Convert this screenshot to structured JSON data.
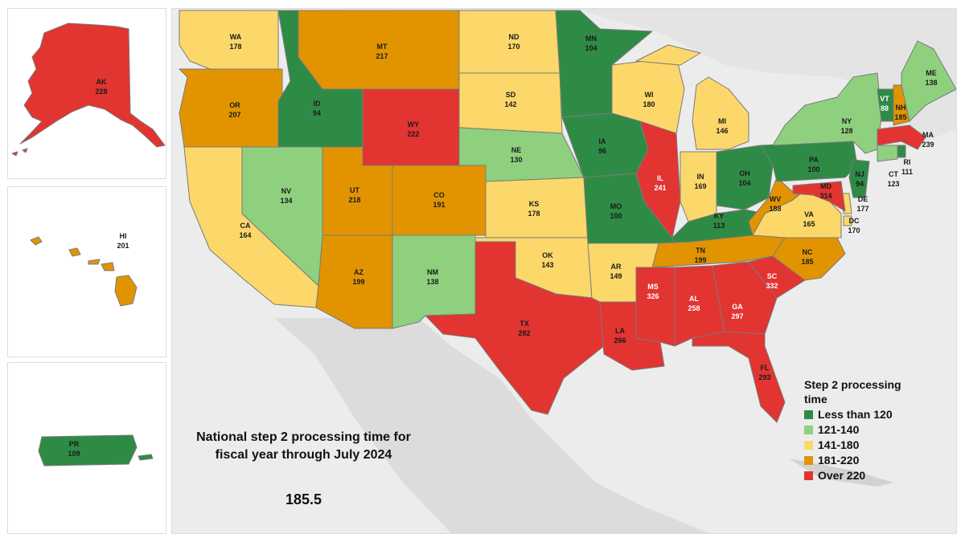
{
  "colors": {
    "less_than_120": "#2e8b45",
    "121_140": "#8fd07f",
    "141_180": "#fcd86a",
    "181_220": "#e29400",
    "over_220": "#e23431",
    "land_bg": "#d4d4d4",
    "sea_bg": "#ececec"
  },
  "title": {
    "line1": "National step 2 processing time for",
    "line2": "fiscal year through July 2024",
    "national_value": "185.5"
  },
  "legend": {
    "title": "Step 2 processing time",
    "items": [
      {
        "label": "Less than 120",
        "color_key": "less_than_120"
      },
      {
        "label": "121-140",
        "color_key": "121_140"
      },
      {
        "label": "141-180",
        "color_key": "141_180"
      },
      {
        "label": "181-220",
        "color_key": "181_220"
      },
      {
        "label": "Over 220",
        "color_key": "over_220"
      }
    ]
  },
  "states": {
    "WA": {
      "abbr": "WA",
      "value": "178",
      "color_key": "141_180"
    },
    "OR": {
      "abbr": "OR",
      "value": "207",
      "color_key": "181_220"
    },
    "CA": {
      "abbr": "CA",
      "value": "164",
      "color_key": "141_180"
    },
    "ID": {
      "abbr": "ID",
      "value": "94",
      "color_key": "less_than_120"
    },
    "NV": {
      "abbr": "NV",
      "value": "134",
      "color_key": "121_140"
    },
    "MT": {
      "abbr": "MT",
      "value": "217",
      "color_key": "181_220"
    },
    "WY": {
      "abbr": "WY",
      "value": "222",
      "color_key": "over_220"
    },
    "UT": {
      "abbr": "UT",
      "value": "218",
      "color_key": "181_220"
    },
    "AZ": {
      "abbr": "AZ",
      "value": "199",
      "color_key": "181_220"
    },
    "CO": {
      "abbr": "CO",
      "value": "191",
      "color_key": "181_220"
    },
    "NM": {
      "abbr": "NM",
      "value": "138",
      "color_key": "121_140"
    },
    "ND": {
      "abbr": "ND",
      "value": "170",
      "color_key": "141_180"
    },
    "SD": {
      "abbr": "SD",
      "value": "142",
      "color_key": "141_180"
    },
    "NE": {
      "abbr": "NE",
      "value": "130",
      "color_key": "121_140"
    },
    "KS": {
      "abbr": "KS",
      "value": "178",
      "color_key": "141_180"
    },
    "OK": {
      "abbr": "OK",
      "value": "143",
      "color_key": "141_180"
    },
    "TX": {
      "abbr": "TX",
      "value": "282",
      "color_key": "over_220"
    },
    "MN": {
      "abbr": "MN",
      "value": "104",
      "color_key": "less_than_120"
    },
    "IA": {
      "abbr": "IA",
      "value": "96",
      "color_key": "less_than_120"
    },
    "MO": {
      "abbr": "MO",
      "value": "100",
      "color_key": "less_than_120"
    },
    "AR": {
      "abbr": "AR",
      "value": "149",
      "color_key": "141_180"
    },
    "LA": {
      "abbr": "LA",
      "value": "266",
      "color_key": "over_220"
    },
    "WI": {
      "abbr": "WI",
      "value": "180",
      "color_key": "141_180"
    },
    "IL": {
      "abbr": "IL",
      "value": "241",
      "color_key": "over_220"
    },
    "MI": {
      "abbr": "MI",
      "value": "146",
      "color_key": "141_180"
    },
    "IN": {
      "abbr": "IN",
      "value": "169",
      "color_key": "141_180"
    },
    "OH": {
      "abbr": "OH",
      "value": "104",
      "color_key": "less_than_120"
    },
    "KY": {
      "abbr": "KY",
      "value": "113",
      "color_key": "less_than_120"
    },
    "TN": {
      "abbr": "TN",
      "value": "199",
      "color_key": "181_220"
    },
    "MS": {
      "abbr": "MS",
      "value": "326",
      "color_key": "over_220"
    },
    "AL": {
      "abbr": "AL",
      "value": "258",
      "color_key": "over_220"
    },
    "GA": {
      "abbr": "GA",
      "value": "297",
      "color_key": "over_220"
    },
    "FL": {
      "abbr": "FL",
      "value": "293",
      "color_key": "over_220"
    },
    "SC": {
      "abbr": "SC",
      "value": "332",
      "color_key": "over_220"
    },
    "NC": {
      "abbr": "NC",
      "value": "185",
      "color_key": "181_220"
    },
    "VA": {
      "abbr": "VA",
      "value": "165",
      "color_key": "141_180"
    },
    "WV": {
      "abbr": "WV",
      "value": "188",
      "color_key": "181_220"
    },
    "PA": {
      "abbr": "PA",
      "value": "100",
      "color_key": "less_than_120"
    },
    "NY": {
      "abbr": "NY",
      "value": "128",
      "color_key": "121_140"
    },
    "VT": {
      "abbr": "VT",
      "value": "88",
      "color_key": "less_than_120"
    },
    "NH": {
      "abbr": "NH",
      "value": "185",
      "color_key": "181_220"
    },
    "ME": {
      "abbr": "ME",
      "value": "138",
      "color_key": "121_140"
    },
    "MA": {
      "abbr": "MA",
      "value": "239",
      "color_key": "over_220"
    },
    "RI": {
      "abbr": "RI",
      "value": "111",
      "color_key": "less_than_120"
    },
    "CT": {
      "abbr": "CT",
      "value": "123",
      "color_key": "121_140"
    },
    "NJ": {
      "abbr": "NJ",
      "value": "94",
      "color_key": "less_than_120"
    },
    "DE": {
      "abbr": "DE",
      "value": "177",
      "color_key": "141_180"
    },
    "MD": {
      "abbr": "MD",
      "value": "314",
      "color_key": "over_220"
    },
    "DC": {
      "abbr": "DC",
      "value": "170",
      "color_key": "141_180"
    },
    "AK": {
      "abbr": "AK",
      "value": "228",
      "color_key": "over_220"
    },
    "HI": {
      "abbr": "HI",
      "value": "201",
      "color_key": "181_220"
    },
    "PR": {
      "abbr": "PR",
      "value": "109",
      "color_key": "less_than_120"
    }
  }
}
